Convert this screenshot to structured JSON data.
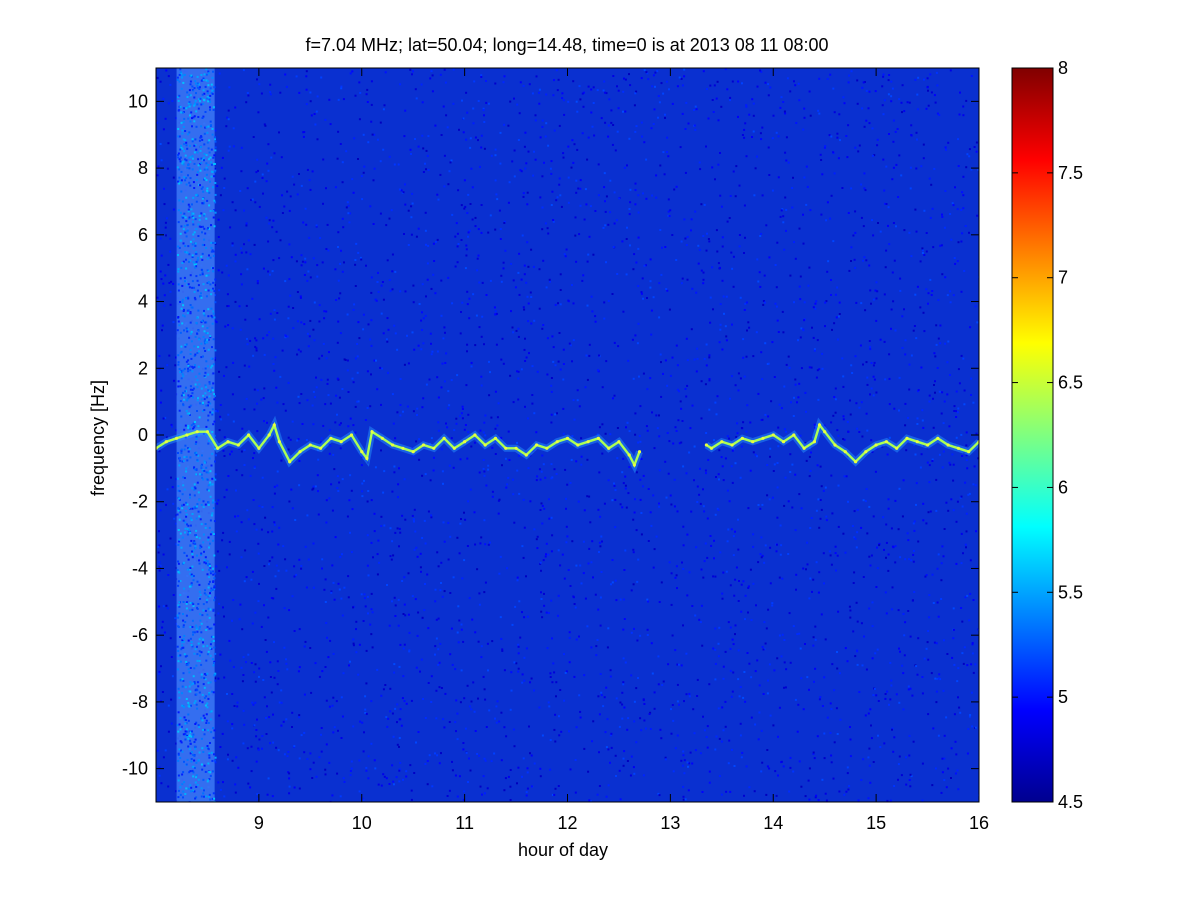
{
  "chart_data": {
    "type": "heatmap",
    "title": "f=7.04 MHz;  lat=50.04; long=14.48, time=0 is at 2013 08 11 08:00",
    "xlabel": "hour of day",
    "ylabel": "frequency [Hz]",
    "xlim": [
      8,
      16
    ],
    "ylim": [
      -11,
      11
    ],
    "x_ticks": [
      "9",
      "10",
      "11",
      "12",
      "13",
      "14",
      "15",
      "16"
    ],
    "x_tick_values": [
      9,
      10,
      11,
      12,
      13,
      14,
      15,
      16
    ],
    "y_ticks": [
      "10",
      "8",
      "6",
      "4",
      "2",
      "0",
      "-2",
      "-4",
      "-6",
      "-8",
      "-10"
    ],
    "y_tick_values": [
      10,
      8,
      6,
      4,
      2,
      0,
      -2,
      -4,
      -6,
      -8,
      -10
    ],
    "colorbar": {
      "colormap": "jet",
      "range": [
        4.5,
        8
      ],
      "ticks": [
        "8",
        "7.5",
        "7",
        "6.5",
        "6",
        "5.5",
        "5",
        "4.5"
      ],
      "tick_values": [
        8,
        7.5,
        7,
        6.5,
        6,
        5.5,
        5,
        4.5
      ]
    },
    "background_level": 4.85,
    "noise_band": {
      "hour_start": 8.2,
      "hour_end": 8.57,
      "level": 5.3
    },
    "gap": {
      "hour_start": 12.72,
      "hour_end": 13.35
    },
    "doppler_trace": {
      "hours": [
        8.0,
        8.1,
        8.2,
        8.3,
        8.4,
        8.5,
        8.6,
        8.7,
        8.8,
        8.9,
        9.0,
        9.1,
        9.15,
        9.2,
        9.3,
        9.4,
        9.5,
        9.6,
        9.7,
        9.8,
        9.9,
        10.0,
        10.05,
        10.1,
        10.2,
        10.3,
        10.4,
        10.5,
        10.6,
        10.7,
        10.8,
        10.9,
        11.0,
        11.1,
        11.2,
        11.3,
        11.4,
        11.5,
        11.6,
        11.7,
        11.8,
        11.9,
        12.0,
        12.1,
        12.2,
        12.3,
        12.4,
        12.5,
        12.6,
        12.65,
        12.7,
        13.35,
        13.4,
        13.5,
        13.6,
        13.7,
        13.8,
        13.9,
        14.0,
        14.1,
        14.2,
        14.3,
        14.4,
        14.45,
        14.5,
        14.6,
        14.7,
        14.8,
        14.9,
        15.0,
        15.1,
        15.2,
        15.3,
        15.4,
        15.5,
        15.6,
        15.7,
        15.8,
        15.9,
        16.0
      ],
      "frequency_hz": [
        -0.4,
        -0.2,
        -0.1,
        0.0,
        0.1,
        0.1,
        -0.4,
        -0.2,
        -0.3,
        0.0,
        -0.4,
        0.0,
        0.3,
        -0.2,
        -0.8,
        -0.5,
        -0.3,
        -0.4,
        -0.1,
        -0.2,
        0.0,
        -0.5,
        -0.7,
        0.1,
        -0.1,
        -0.3,
        -0.4,
        -0.5,
        -0.3,
        -0.4,
        -0.1,
        -0.4,
        -0.2,
        0.0,
        -0.3,
        -0.1,
        -0.4,
        -0.4,
        -0.6,
        -0.3,
        -0.4,
        -0.2,
        -0.1,
        -0.3,
        -0.2,
        -0.1,
        -0.4,
        -0.2,
        -0.6,
        -0.9,
        -0.5,
        -0.3,
        -0.4,
        -0.2,
        -0.3,
        -0.1,
        -0.2,
        -0.1,
        0.0,
        -0.2,
        0.0,
        -0.4,
        -0.2,
        0.3,
        0.1,
        -0.3,
        -0.5,
        -0.8,
        -0.5,
        -0.3,
        -0.2,
        -0.4,
        -0.1,
        -0.2,
        -0.3,
        -0.1,
        -0.3,
        -0.4,
        -0.5,
        -0.2
      ],
      "level": 6.4
    }
  }
}
